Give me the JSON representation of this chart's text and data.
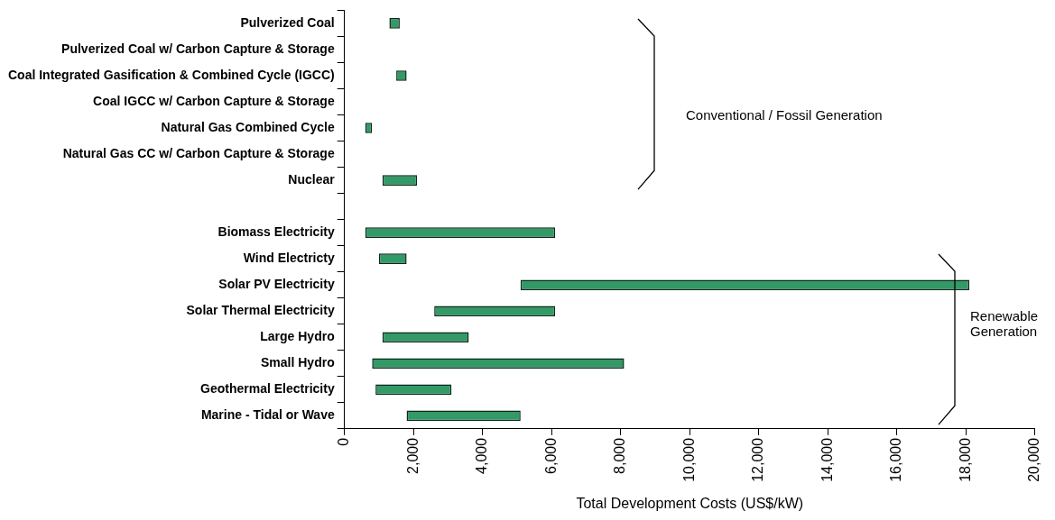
{
  "chart_data": {
    "type": "bar",
    "orientation": "horizontal",
    "categories": [
      "Pulverized Coal",
      "Pulverized Coal w/ Carbon Capture & Storage",
      "Coal Integrated Gasification & Combined Cycle (IGCC)",
      "Coal IGCC w/ Carbon Capture & Storage",
      "Natural Gas Combined Cycle",
      "Natural Gas CC w/ Carbon Capture & Storage",
      "Nuclear",
      null,
      "Biomass Electricity",
      "Wind Electricty",
      "Solar PV Electricity",
      "Solar Thermal Electricity",
      "Large Hydro",
      "Small Hydro",
      "Geothermal Electricity",
      "Marine - Tidal or Wave"
    ],
    "base": [
      1300,
      null,
      1500,
      null,
      600,
      null,
      1100,
      null,
      600,
      1000,
      5100,
      2600,
      1100,
      800,
      900,
      1800
    ],
    "values": [
      300,
      null,
      300,
      null,
      200,
      null,
      1000,
      null,
      5500,
      800,
      13000,
      3500,
      2500,
      7300,
      2200,
      3300
    ],
    "color": "#339966",
    "xlabel": "Total Development Costs (US$/kW)",
    "xlim": [
      0,
      20000
    ],
    "xticks": [
      0,
      {
        "value": 2000,
        "label": "2,000"
      },
      {
        "value": 4000,
        "label": "4,000"
      },
      {
        "value": 6000,
        "label": "6,000"
      },
      {
        "value": 8000,
        "label": "8,000"
      },
      {
        "value": 10000,
        "label": "10,000"
      },
      {
        "value": 12000,
        "label": "12,000"
      },
      {
        "value": 14000,
        "label": "14,000"
      },
      {
        "value": 16000,
        "label": "16,000"
      },
      {
        "value": 18000,
        "label": "18,000"
      },
      {
        "value": 20000,
        "label": "20,000"
      }
    ],
    "annotations": [
      "Conventional / Fossil Generation",
      "Renewable Generation"
    ]
  }
}
